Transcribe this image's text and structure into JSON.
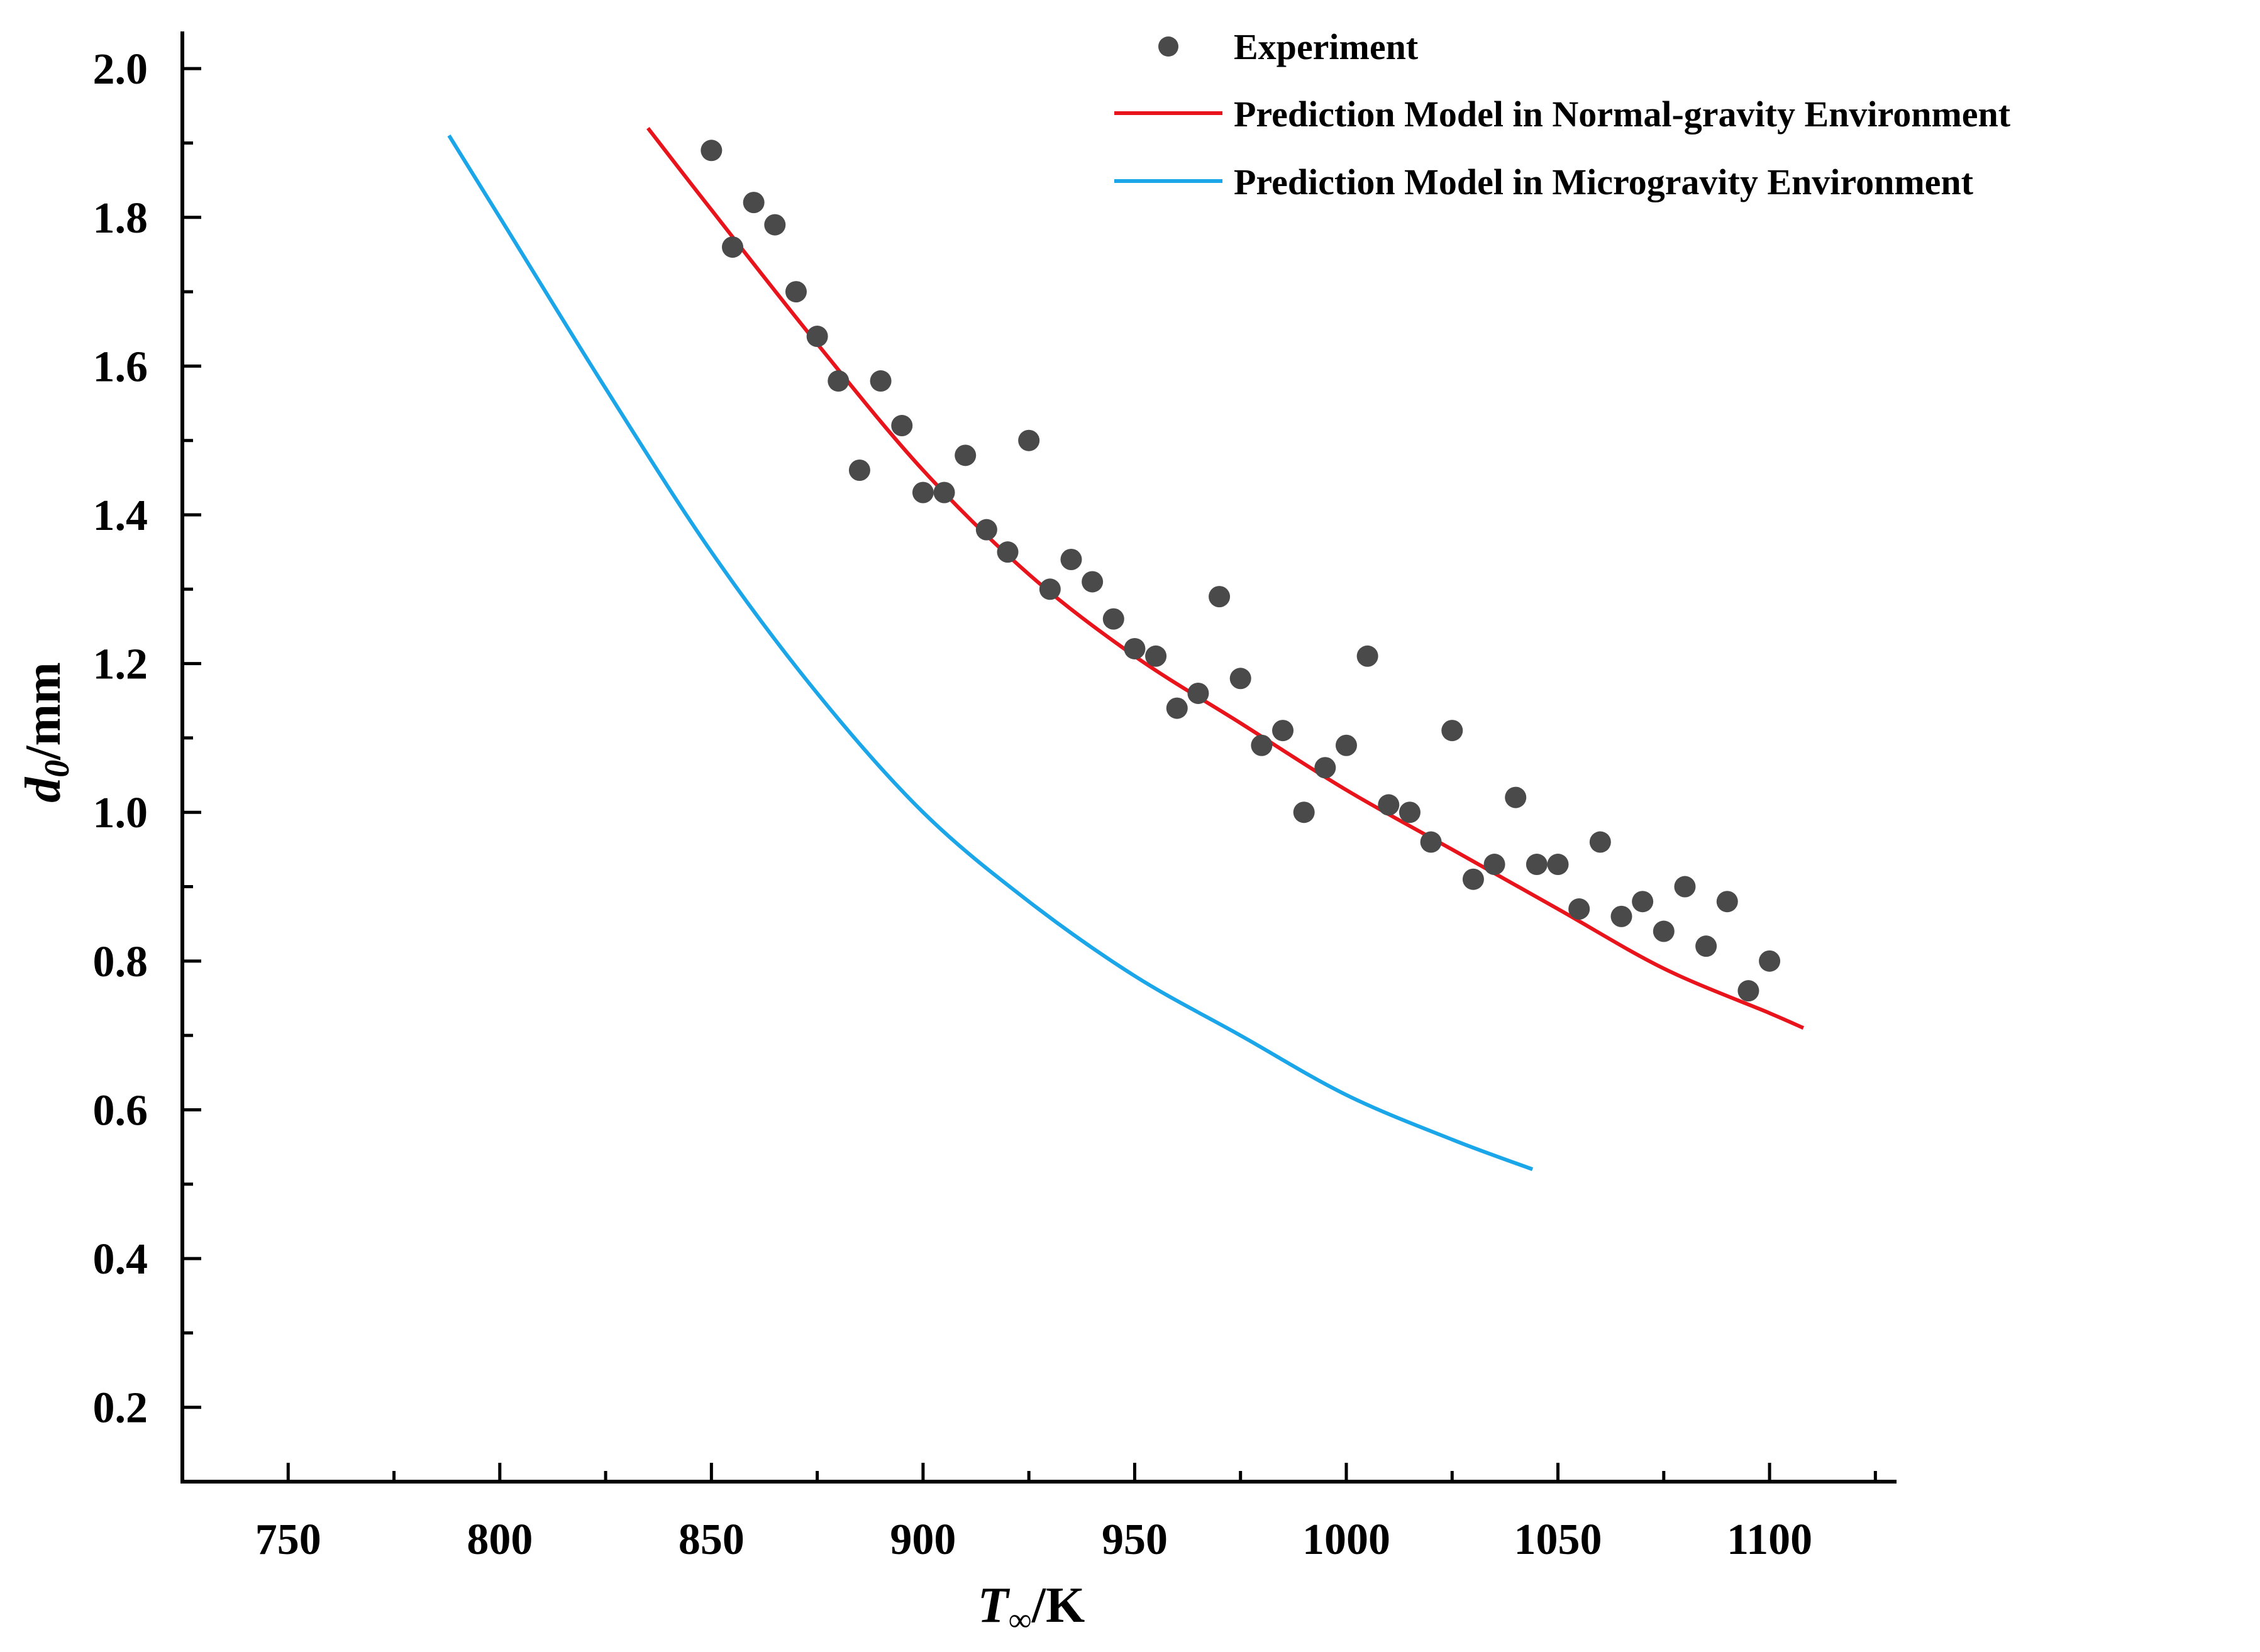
{
  "chart_data": {
    "type": "scatter",
    "title": "",
    "xlabel": {
      "main": "T",
      "subscript": "∞",
      "unit": "/K"
    },
    "ylabel": {
      "main": "d",
      "subscript": "0",
      "unit": "/mm"
    },
    "xlim": [
      725,
      1130
    ],
    "ylim": [
      0.1,
      2.05
    ],
    "xticks": [
      750,
      800,
      850,
      900,
      950,
      1000,
      1050,
      1100
    ],
    "yticks": [
      0.2,
      0.4,
      0.6,
      0.8,
      1.0,
      1.2,
      1.4,
      1.6,
      1.8,
      2.0
    ],
    "x_tick_labels": [
      "750",
      "800",
      "850",
      "900",
      "950",
      "1000",
      "1050",
      "1100"
    ],
    "y_tick_labels": [
      "0.2",
      "0.4",
      "0.6",
      "0.8",
      "1.0",
      "1.2",
      "1.4",
      "1.6",
      "1.8",
      "2.0"
    ],
    "grid": false,
    "legend_position": "top-right",
    "series": [
      {
        "name": "Experiment",
        "kind": "scatter",
        "color": "#4a4a4a",
        "x": [
          850,
          855,
          860,
          865,
          870,
          875,
          880,
          885,
          890,
          895,
          900,
          905,
          910,
          915,
          920,
          925,
          930,
          935,
          940,
          945,
          950,
          955,
          960,
          965,
          970,
          975,
          980,
          985,
          990,
          995,
          1000,
          1005,
          1010,
          1015,
          1020,
          1025,
          1030,
          1035,
          1040,
          1045,
          1050,
          1055,
          1060,
          1065,
          1070,
          1075,
          1080,
          1085,
          1090,
          1095,
          1100
        ],
        "y": [
          1.89,
          1.76,
          1.82,
          1.79,
          1.7,
          1.64,
          1.58,
          1.46,
          1.58,
          1.52,
          1.43,
          1.43,
          1.48,
          1.38,
          1.35,
          1.5,
          1.3,
          1.34,
          1.31,
          1.26,
          1.22,
          1.21,
          1.14,
          1.16,
          1.29,
          1.18,
          1.09,
          1.11,
          1.0,
          1.06,
          1.09,
          1.21,
          1.01,
          1.0,
          0.96,
          1.11,
          0.91,
          0.93,
          1.02,
          0.93,
          0.93,
          0.87,
          0.96,
          0.86,
          0.88,
          0.84,
          0.9,
          0.82,
          0.88,
          0.76,
          0.8
        ]
      },
      {
        "name": "Prediction Model in Normal-gravity Environment",
        "kind": "line",
        "color": "#e8131b",
        "x": [
          835,
          850,
          875,
          900,
          925,
          950,
          975,
          1000,
          1025,
          1050,
          1075,
          1100,
          1108
        ],
        "y": [
          1.92,
          1.81,
          1.63,
          1.46,
          1.32,
          1.21,
          1.12,
          1.03,
          0.95,
          0.87,
          0.79,
          0.73,
          0.71
        ]
      },
      {
        "name": "Prediction Model in Microgravity Environment",
        "kind": "line",
        "color": "#1aa6e8",
        "x": [
          788,
          800,
          825,
          850,
          875,
          900,
          925,
          950,
          975,
          1000,
          1025,
          1044
        ],
        "y": [
          1.91,
          1.8,
          1.57,
          1.35,
          1.16,
          1.0,
          0.88,
          0.78,
          0.7,
          0.62,
          0.56,
          0.52
        ]
      }
    ]
  }
}
